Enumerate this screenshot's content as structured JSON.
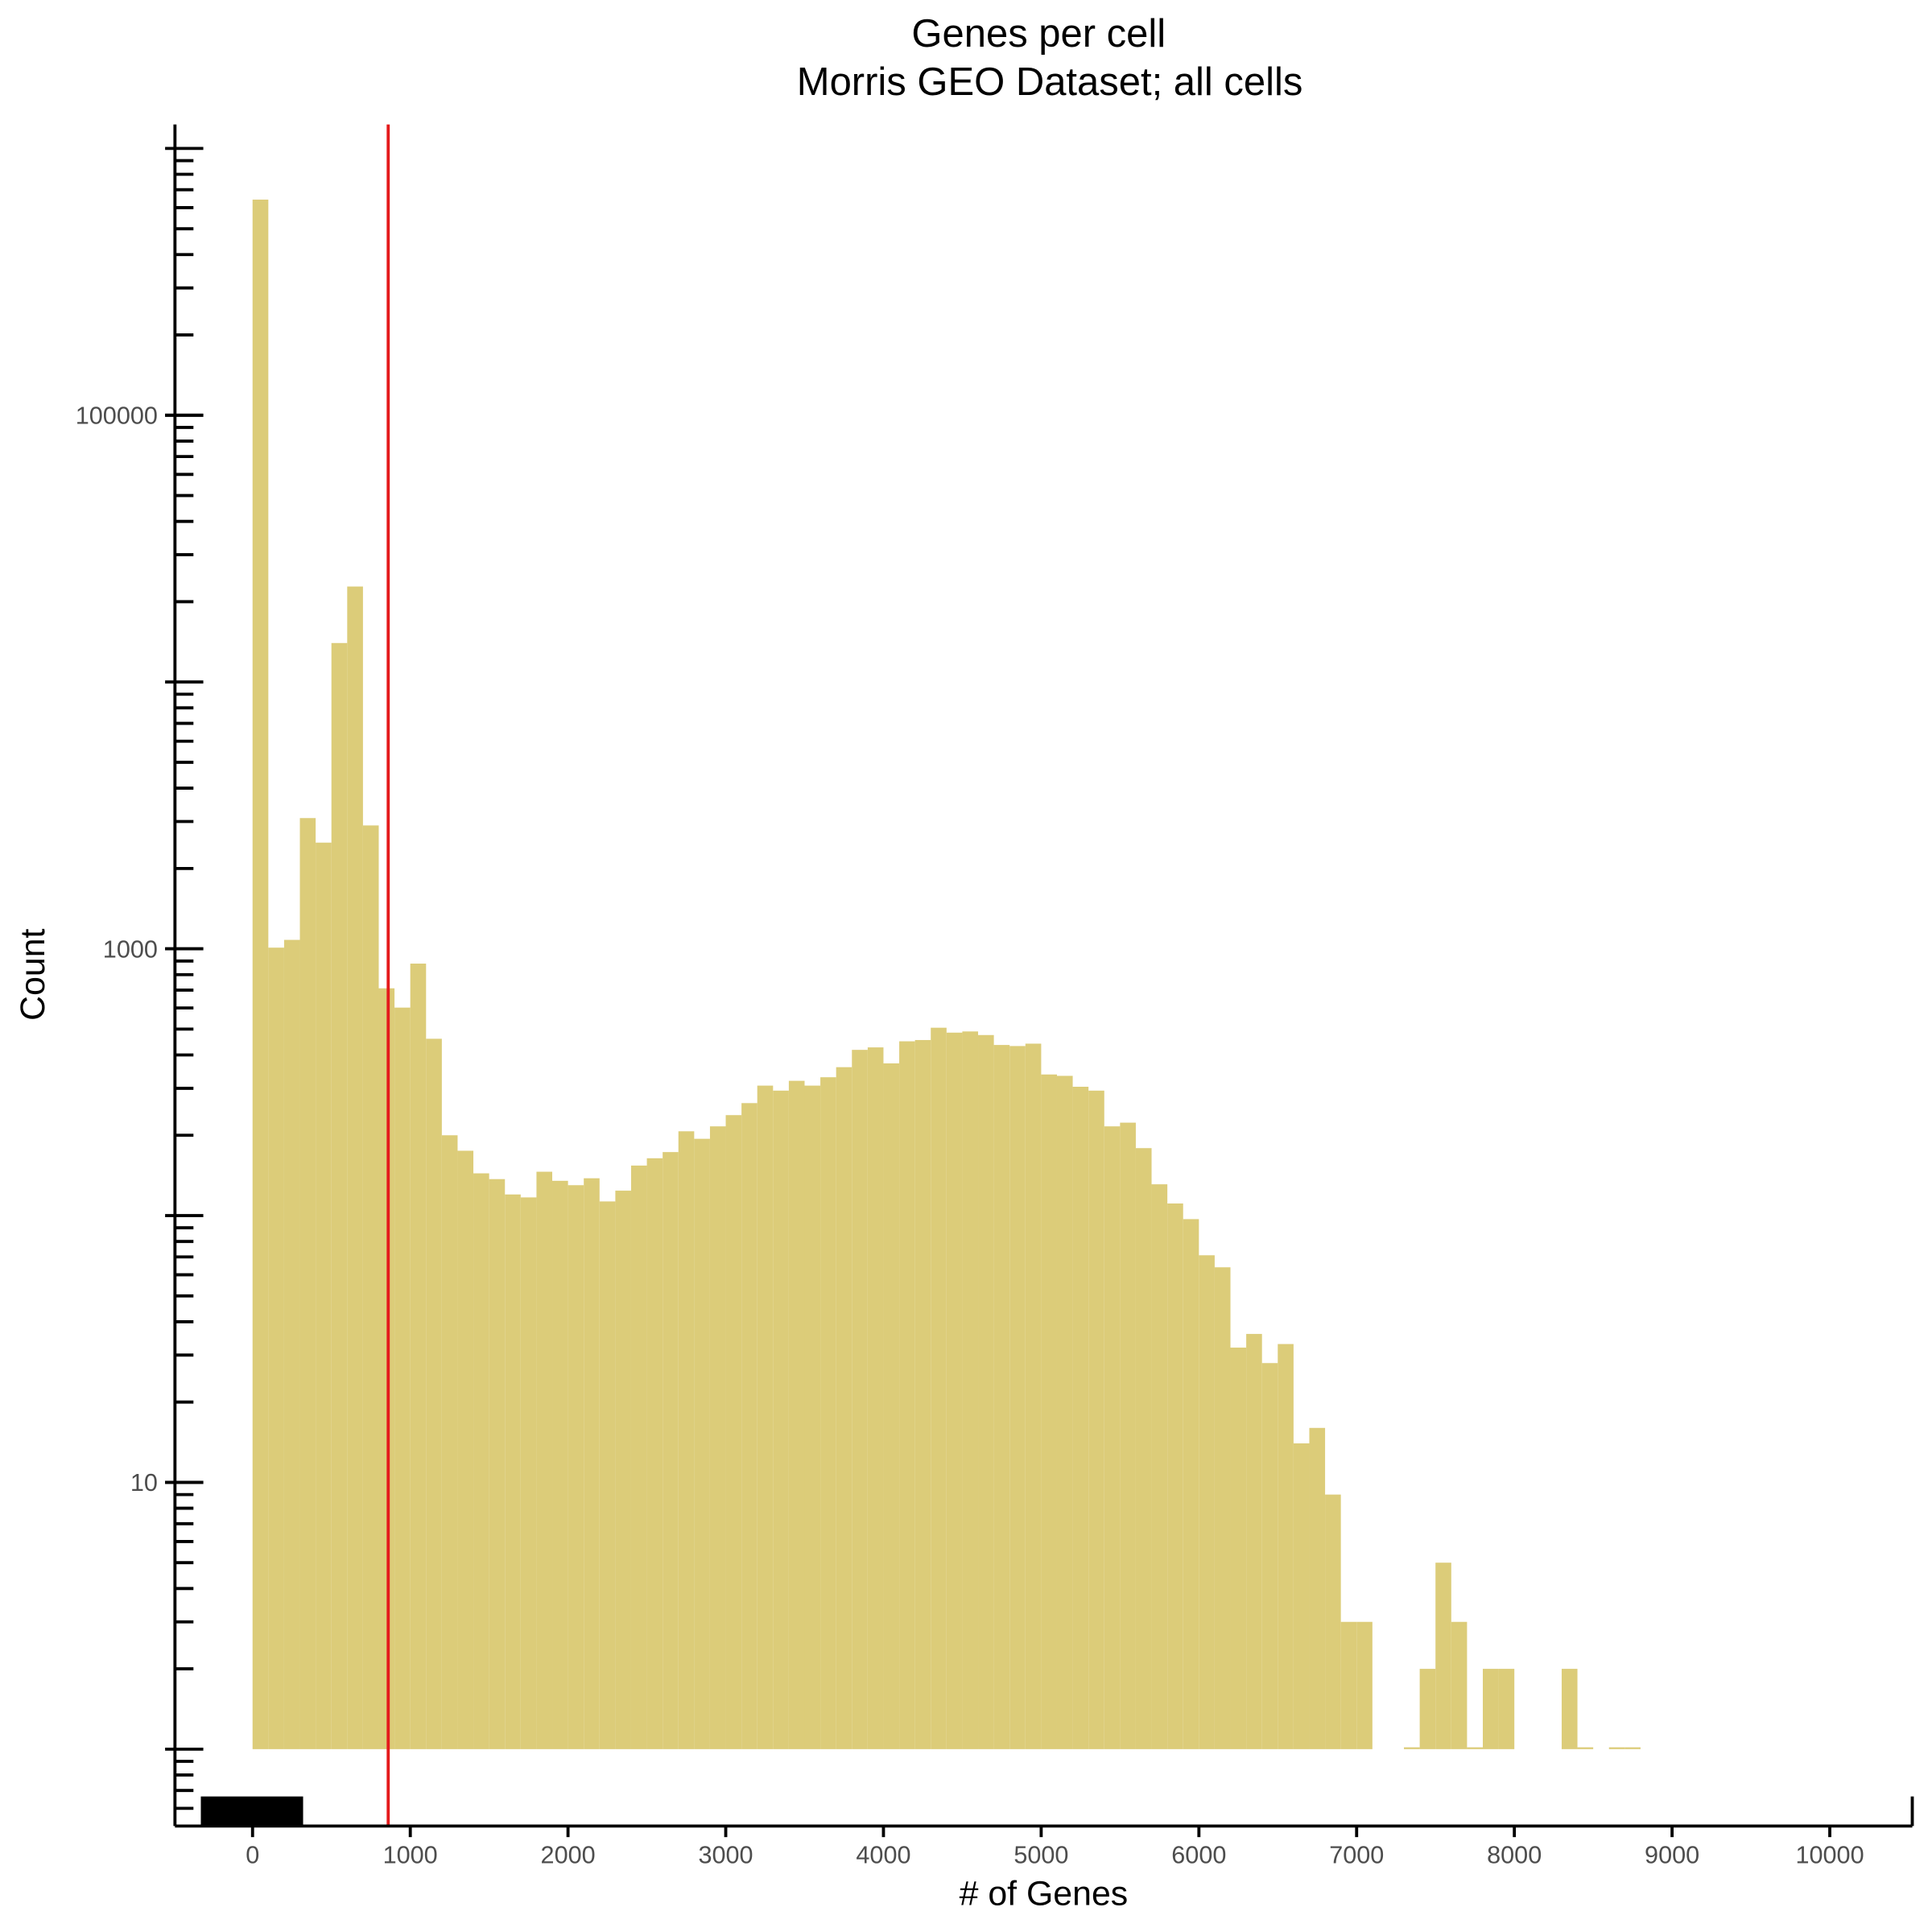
{
  "chart_data": {
    "type": "histogram",
    "title": "Genes per cell",
    "subtitle": "Morris GEO Dataset; all cells",
    "xlabel": "# of Genes",
    "ylabel": "Count",
    "bins": [
      0,
      100,
      200,
      300,
      400,
      500,
      600,
      700,
      800,
      900,
      1000,
      1100,
      1200,
      1300,
      1400,
      1500,
      1600,
      1700,
      1800,
      1900,
      2000,
      2100,
      2200,
      2300,
      2400,
      2500,
      2600,
      2700,
      2800,
      2900,
      3000,
      3100,
      3200,
      3300,
      3400,
      3500,
      3600,
      3700,
      3800,
      3900,
      4000,
      4100,
      4200,
      4300,
      4400,
      4500,
      4600,
      4700,
      4800,
      4900,
      5000,
      5100,
      5200,
      5300,
      5400,
      5500,
      5600,
      5700,
      5800,
      5900,
      6000,
      6100,
      6200,
      6300,
      6400,
      6500,
      6600,
      6700,
      6800,
      6900,
      7000,
      7100,
      7200,
      7300,
      7400,
      7500,
      7600,
      7700,
      7800,
      7900,
      8000,
      8100,
      8200,
      8300,
      8400,
      8500,
      8600,
      8700,
      8800
    ],
    "values": [
      643000,
      1010,
      1080,
      3090,
      2500,
      14000,
      22800,
      2900,
      711,
      602,
      880,
      460,
      200,
      175,
      144,
      137,
      120,
      117,
      146,
      135,
      130,
      138,
      113,
      124,
      154,
      164,
      173,
      207,
      194,
      216,
      238,
      264,
      307,
      294,
      320,
      307,
      330,
      360,
      418,
      427,
      372,
      450,
      455,
      506,
      485,
      490,
      475,
      436,
      432,
      441,
      338,
      334,
      304,
      294,
      216,
      223,
      179,
      131,
      111,
      97,
      71,
      64,
      32,
      36,
      28,
      33,
      14,
      16,
      9,
      3,
      3,
      null,
      null,
      1,
      2,
      5,
      3,
      1,
      2,
      2,
      null,
      null,
      null,
      2,
      1,
      null,
      1,
      1
    ],
    "color": "#dccc79",
    "vline": 860,
    "vline_color": "#e41a1c",
    "log_y": true,
    "xlim": [
      -492,
      10523
    ],
    "ylim": [
      0.515,
      1230000
    ],
    "xticks": [
      0,
      1000,
      2000,
      3000,
      4000,
      5000,
      6000,
      7000,
      8000,
      9000,
      10000
    ],
    "yticks": [
      10,
      1000,
      100000
    ]
  }
}
